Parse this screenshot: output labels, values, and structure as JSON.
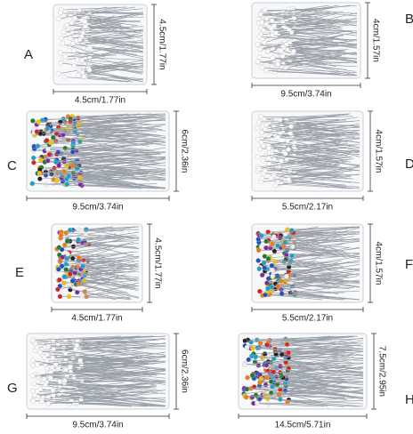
{
  "items": [
    {
      "letter": "A",
      "width": "4.5cm/1.77in",
      "height": "4.5cm/1.77in"
    },
    {
      "letter": "B",
      "width": "9.5cm/3.74in",
      "height": "4cm/1.57in"
    },
    {
      "letter": "C",
      "width": "9.5cm/3.74in",
      "height": "6cm/2.36in"
    },
    {
      "letter": "D",
      "width": "5.5cm/2.17in",
      "height": "4cm/1.57in"
    },
    {
      "letter": "E",
      "width": "4.5cm/1.77in",
      "height": "4.5cm/1.77in"
    },
    {
      "letter": "F",
      "width": "5.5cm/2.17in",
      "height": "4cm/1.57in"
    },
    {
      "letter": "G",
      "width": "9.5cm/3.74in",
      "height": "6cm/2.36in"
    },
    {
      "letter": "H",
      "width": "14.5cm/5.71in",
      "height": "7.5cm/2.95in"
    }
  ]
}
